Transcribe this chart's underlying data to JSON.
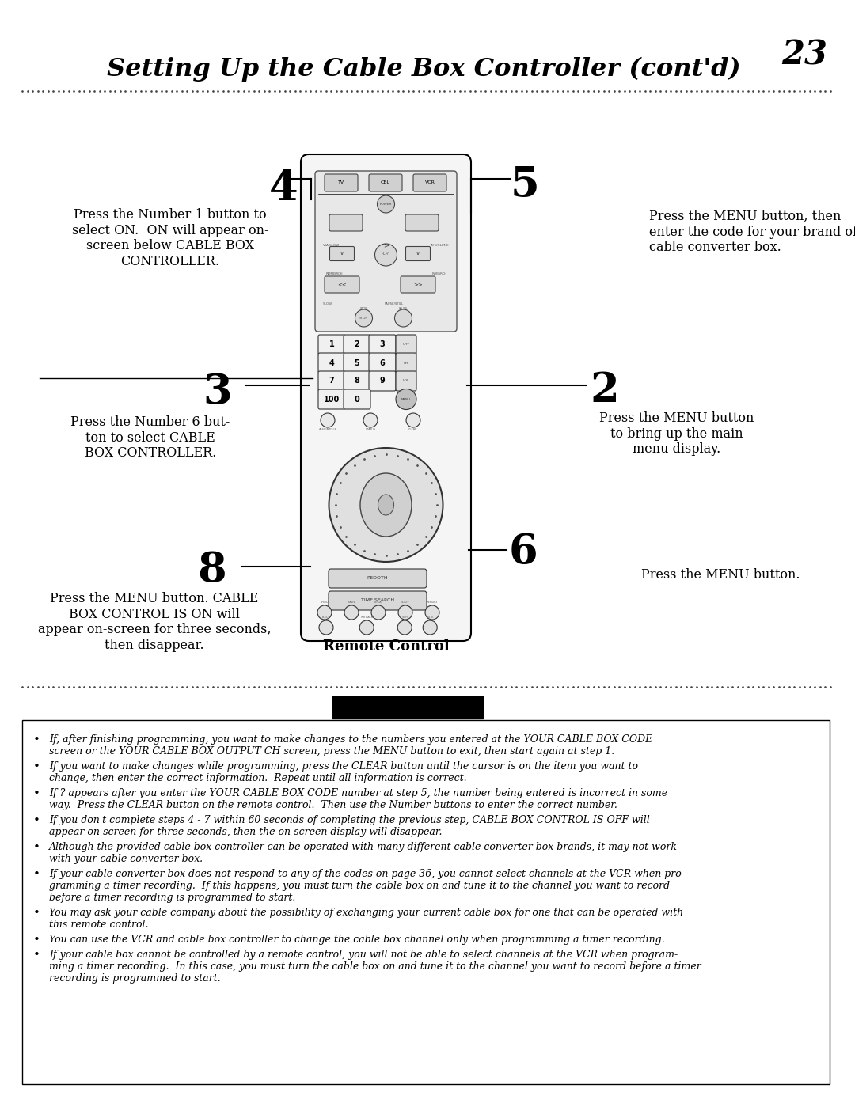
{
  "page_number": "23",
  "title": "Setting Up the Cable Box Controller (cont'd)",
  "bg_color": "#ffffff",
  "text_color": "#000000",
  "step4_label": "4",
  "step4_text": "Press the Number 1 button to\nselect ON.  ON will appear on-\nscreen below CABLE BOX\nCONTROLLER.",
  "step5_label": "5",
  "step5_text": "Press the MENU button, then\nenter the code for your brand of\ncable converter box.",
  "step3_label": "3",
  "step3_text": "Press the Number 6 but-\nton to select CABLE\nBOX CONTROLLER.",
  "step2_label": "2",
  "step2_text": "Press the MENU button\nto bring up the main\nmenu display.",
  "step8_label": "8",
  "step8_text": "Press the MENU button. CABLE\nBOX CONTROL IS ON will\nappear on-screen for three seconds,\nthen disappear.",
  "step6_label": "6",
  "step6_text": "Press the MENU button.",
  "remote_label": "Remote Control",
  "bullet_points": [
    "If, after finishing programming, you want to make changes to the numbers you entered at the YOUR CABLE BOX CODE\nscreen or the YOUR CABLE BOX OUTPUT CH screen, press the MENU button to exit, then start again at step 1.",
    "If you want to make changes while programming, press the CLEAR button until the cursor is on the item you want to\nchange, then enter the correct information.  Repeat until all information is correct.",
    "If ? appears after you enter the YOUR CABLE BOX CODE number at step 5, the number being entered is incorrect in some\nway.  Press the CLEAR button on the remote control.  Then use the Number buttons to enter the correct number.",
    "If you don't complete steps 4 - 7 within 60 seconds of completing the previous step, CABLE BOX CONTROL IS OFF will\nappear on-screen for three seconds, then the on-screen display will disappear.",
    "Although the provided cable box controller can be operated with many different cable converter box brands, it may not work\nwith your cable converter box.",
    "If your cable converter box does not respond to any of the codes on page 36, you cannot select channels at the VCR when pro-\ngramming a timer recording.  If this happens, you must turn the cable box on and tune it to the channel you want to record\nbefore a timer recording is programmed to start.",
    "You may ask your cable company about the possibility of exchanging your current cable box for one that can be operated with\nthis remote control.",
    "You can use the VCR and cable box controller to change the cable box channel only when programming a timer recording.",
    "If your cable box cannot be controlled by a remote control, you will not be able to select channels at the VCR when program-\nming a timer recording.  In this case, you must turn the cable box on and tune it to the channel you want to record before a timer\nrecording is programmed to start."
  ]
}
